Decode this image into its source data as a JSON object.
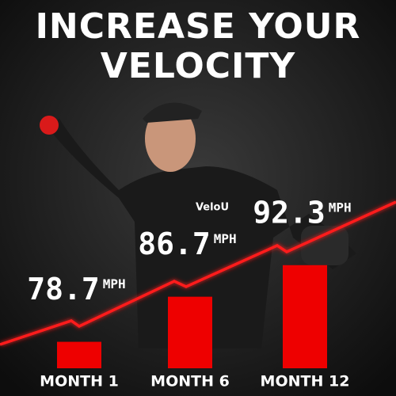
{
  "chart_data": {
    "type": "bar",
    "title": [
      "INCREASE YOUR",
      "VELOCITY"
    ],
    "brand": "VeloU",
    "categories": [
      "MONTH 1",
      "MONTH 6",
      "MONTH 12"
    ],
    "values": [
      78.7,
      86.7,
      92.3
    ],
    "value_labels": [
      "78.7",
      "86.7",
      "92.3"
    ],
    "unit": "MPH",
    "color": "#ee0000",
    "ylim": [
      74,
      100
    ]
  }
}
